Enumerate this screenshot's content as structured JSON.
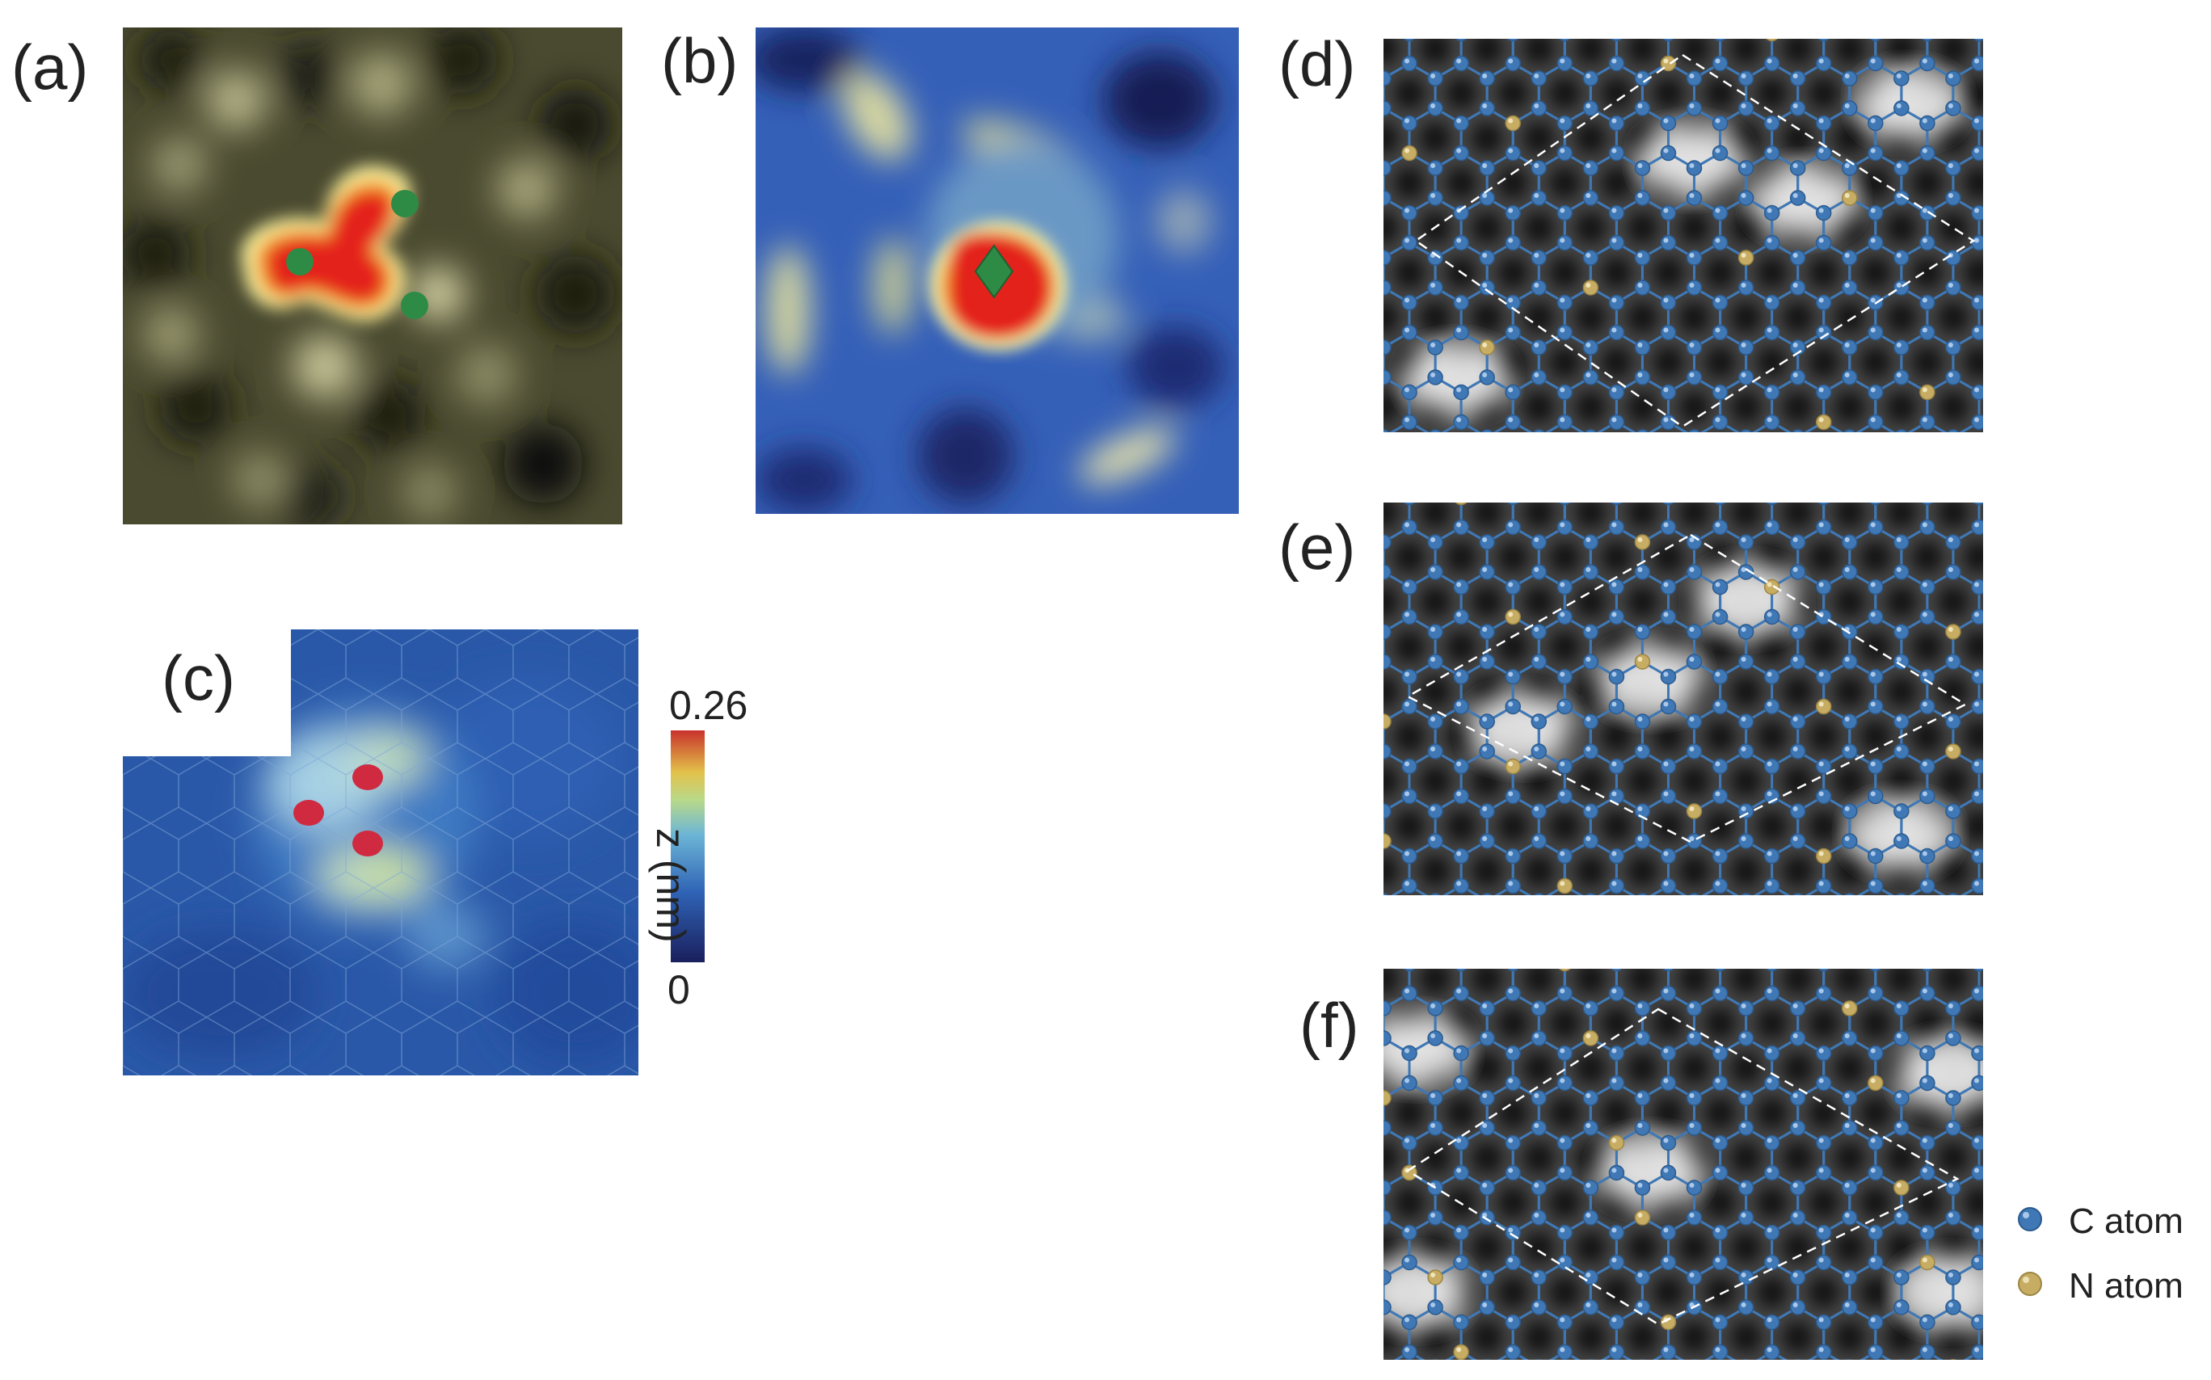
{
  "panels": {
    "a": {
      "label": "(a)"
    },
    "b": {
      "label": "(b)"
    },
    "c": {
      "label": "(c)"
    },
    "d": {
      "label": "(d)"
    },
    "e": {
      "label": "(e)"
    },
    "f": {
      "label": "(f)"
    }
  },
  "colorbar": {
    "max_label": "0.26",
    "min_label": "0",
    "axis_label": "z (nm)",
    "colors": [
      "#1a1f5c",
      "#2f63b5",
      "#6cb5d6",
      "#b9d98a",
      "#e3c14a",
      "#c8322c"
    ]
  },
  "legend": {
    "items": [
      {
        "label": "C atom",
        "color": "#3f78b5"
      },
      {
        "label": "N atom",
        "color": "#c7ac63"
      }
    ]
  },
  "colors": {
    "carbon": "#3f78b5",
    "nitrogen": "#c7ac63",
    "marker_green": "#2e8b45",
    "marker_red": "#d02a40",
    "hot_red": "#e4231e"
  }
}
